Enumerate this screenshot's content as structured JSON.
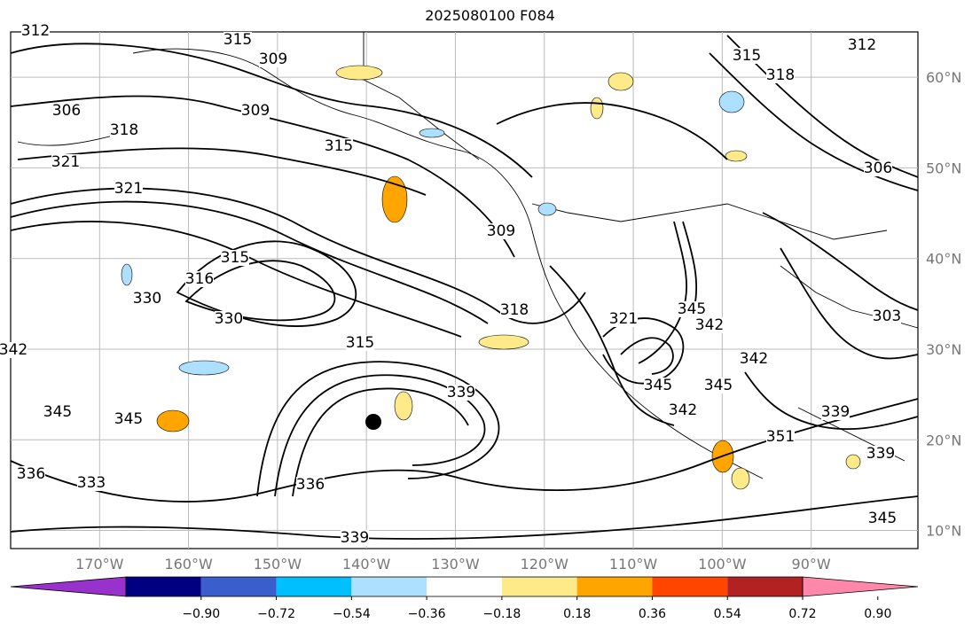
{
  "title": "2025080100 F084",
  "map": {
    "projection": "lat-lon",
    "lon_range": [
      -180,
      -78
    ],
    "lat_range": [
      8,
      65
    ],
    "lon_ticks": [
      "170°W",
      "160°W",
      "150°W",
      "140°W",
      "130°W",
      "120°W",
      "110°W",
      "100°W",
      "90°W"
    ],
    "lat_ticks": [
      "60°N",
      "50°N",
      "40°N",
      "30°N",
      "20°N",
      "10°N"
    ],
    "gridlines": true,
    "contour_labels": [
      "312",
      "315",
      "309",
      "306",
      "309",
      "318",
      "321",
      "315",
      "321",
      "315",
      "316",
      "330",
      "330",
      "309",
      "318",
      "315",
      "321",
      "345",
      "342",
      "345",
      "345",
      "336",
      "333",
      "336",
      "339",
      "342",
      "345",
      "345",
      "342",
      "351",
      "339",
      "339",
      "339",
      "315",
      "318",
      "306",
      "303",
      "312",
      "342",
      "345"
    ],
    "marker": "storm-center-dot"
  },
  "colorbar": {
    "tick_labels": [
      "−0.90",
      "−0.72",
      "−0.54",
      "−0.36",
      "−0.18",
      "0.18",
      "0.36",
      "0.54",
      "0.72",
      "0.90"
    ],
    "colors": [
      "#9932CC",
      "#000080",
      "#3A5FCD",
      "#00BFFF",
      "#ADDFFF",
      "#FFFFFF",
      "#FFEA8A",
      "#FFA500",
      "#FF4500",
      "#B22222",
      "#FF88AA"
    ],
    "extend": "both"
  }
}
